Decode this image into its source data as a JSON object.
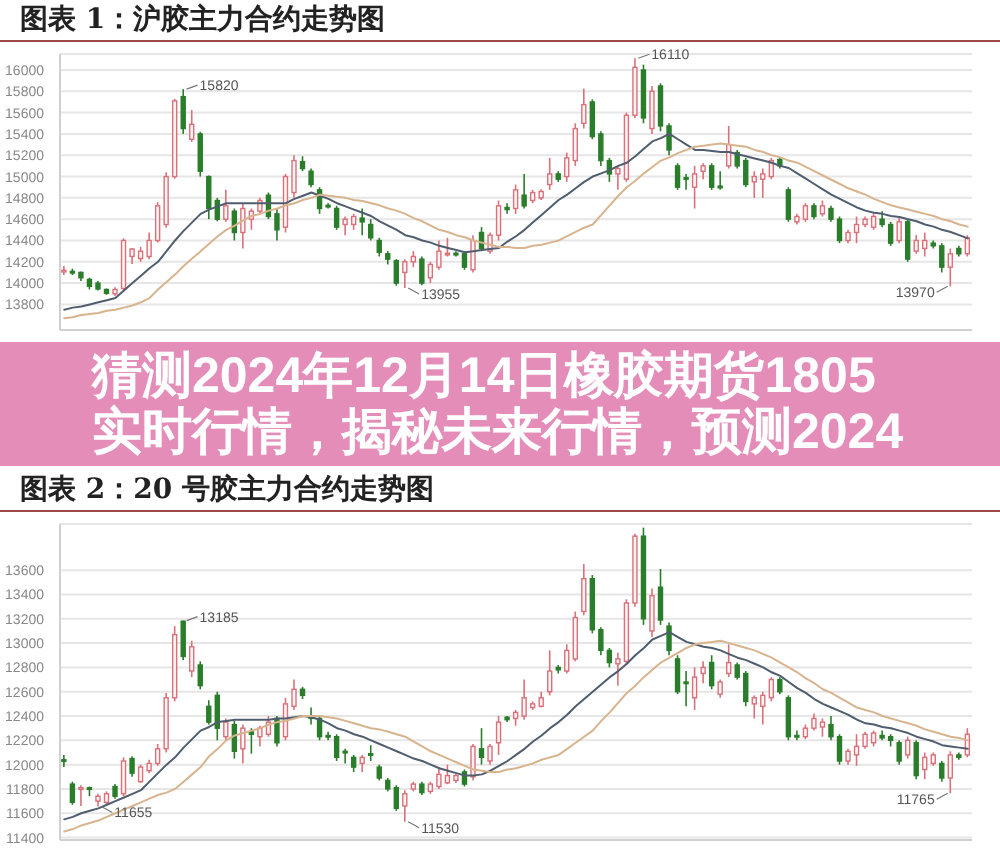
{
  "chart_data": [
    {
      "type": "candlestick",
      "title": "图表 1：沪胶主力合约走势图",
      "categories": [
        null,
        null,
        null,
        null,
        null,
        null,
        null,
        null,
        null,
        null,
        null,
        null,
        null,
        null,
        null,
        null,
        null,
        null,
        null,
        null,
        null,
        null,
        null,
        null,
        null,
        null,
        null,
        null,
        null,
        null,
        null,
        null,
        null,
        null,
        null,
        null,
        null,
        null,
        null,
        null,
        null,
        null,
        null,
        null,
        null,
        null,
        null,
        null,
        null,
        null,
        null,
        null,
        null,
        null,
        null,
        null,
        null,
        null,
        null,
        null,
        null,
        null,
        null,
        null,
        null,
        null,
        null,
        null,
        null,
        null,
        null,
        null,
        null,
        null,
        null,
        null,
        null,
        null,
        null,
        null,
        null,
        null,
        null,
        null,
        null,
        null,
        null,
        null,
        null,
        null,
        null,
        null,
        null,
        null,
        null,
        null,
        null,
        null,
        null,
        null,
        null,
        null,
        null,
        null,
        null,
        null,
        null
      ],
      "ohlc": [
        [
          14110,
          14160,
          14075,
          14120
        ],
        [
          14110,
          14135,
          14075,
          14100
        ],
        [
          14100,
          14110,
          14020,
          14050
        ],
        [
          14035,
          14050,
          13940,
          13970
        ],
        [
          14000,
          14020,
          13930,
          13945
        ],
        [
          13940,
          13950,
          13890,
          13905
        ],
        [
          13900,
          13960,
          13880,
          13940
        ],
        [
          13950,
          14420,
          13930,
          14400
        ],
        [
          14250,
          14330,
          14180,
          14320
        ],
        [
          14230,
          14340,
          14200,
          14300
        ],
        [
          14250,
          14475,
          14225,
          14400
        ],
        [
          14400,
          14760,
          14380,
          14725
        ],
        [
          14550,
          15040,
          14520,
          15000
        ],
        [
          15000,
          15730,
          14980,
          15710
        ],
        [
          15750,
          15820,
          15400,
          15450
        ],
        [
          15350,
          15625,
          15325,
          15490
        ],
        [
          15400,
          15420,
          15000,
          15050
        ],
        [
          15000,
          15010,
          14600,
          14700
        ],
        [
          14775,
          14800,
          14580,
          14600
        ],
        [
          14600,
          14875,
          14575,
          14725
        ],
        [
          14675,
          14700,
          14400,
          14475
        ],
        [
          14475,
          14750,
          14325,
          14700
        ],
        [
          14600,
          14700,
          14500,
          14675
        ],
        [
          14675,
          14800,
          14650,
          14775
        ],
        [
          14825,
          14850,
          14600,
          14625
        ],
        [
          14650,
          14700,
          14400,
          14500
        ],
        [
          14525,
          15025,
          14475,
          15000
        ],
        [
          14850,
          15200,
          14800,
          15150
        ],
        [
          15140,
          15190,
          15050,
          15075
        ],
        [
          15050,
          15075,
          14900,
          14925
        ],
        [
          14875,
          14900,
          14650,
          14700
        ],
        [
          14730,
          14750,
          14700,
          14720
        ],
        [
          14700,
          14725,
          14500,
          14525
        ],
        [
          14550,
          14625,
          14450,
          14600
        ],
        [
          14550,
          14650,
          14500,
          14625
        ],
        [
          14610,
          14700,
          14450,
          14575
        ],
        [
          14550,
          14600,
          14400,
          14425
        ],
        [
          14400,
          14425,
          14250,
          14290
        ],
        [
          14275,
          14300,
          14175,
          14225
        ],
        [
          14210,
          14225,
          13975,
          14000
        ],
        [
          14100,
          14225,
          13955,
          14200
        ],
        [
          14200,
          14300,
          14150,
          14250
        ],
        [
          14225,
          14250,
          13980,
          14000
        ],
        [
          14050,
          14200,
          14000,
          14175
        ],
        [
          14150,
          14400,
          14125,
          14300
        ],
        [
          14270,
          14425,
          14250,
          14280
        ],
        [
          14280,
          14300,
          14250,
          14270
        ],
        [
          14275,
          14300,
          14125,
          14150
        ],
        [
          14125,
          14450,
          14100,
          14400
        ],
        [
          14475,
          14525,
          14300,
          14325
        ],
        [
          14300,
          14475,
          14275,
          14450
        ],
        [
          14450,
          14775,
          14400,
          14725
        ],
        [
          14710,
          14750,
          14650,
          14690
        ],
        [
          14700,
          14925,
          14650,
          14875
        ],
        [
          14825,
          15025,
          14700,
          14725
        ],
        [
          14775,
          14875,
          14750,
          14850
        ],
        [
          14800,
          14880,
          14780,
          14860
        ],
        [
          14925,
          15175,
          14875,
          15025
        ],
        [
          15025,
          15050,
          14950,
          14975
        ],
        [
          15000,
          15225,
          14950,
          15175
        ],
        [
          15150,
          15500,
          15100,
          15450
        ],
        [
          15500,
          15825,
          15450,
          15675
        ],
        [
          15700,
          15725,
          15350,
          15375
        ],
        [
          15400,
          15425,
          15100,
          15150
        ],
        [
          15150,
          15175,
          14950,
          15025
        ],
        [
          15025,
          15100,
          14875,
          15075
        ],
        [
          14975,
          15600,
          14950,
          15575
        ],
        [
          15575,
          16110,
          15550,
          16025
        ],
        [
          16000,
          16050,
          15500,
          15550
        ],
        [
          15450,
          15850,
          15400,
          15800
        ],
        [
          15850,
          15875,
          15425,
          15475
        ],
        [
          15475,
          15500,
          15200,
          15250
        ],
        [
          15100,
          15125,
          14875,
          14900
        ],
        [
          14990,
          15025,
          14875,
          14975
        ],
        [
          14900,
          15100,
          14700,
          15025
        ],
        [
          15050,
          15125,
          14975,
          15100
        ],
        [
          15100,
          15125,
          14875,
          14900
        ],
        [
          14910,
          15050,
          14875,
          14900
        ],
        [
          15100,
          15475,
          15075,
          15300
        ],
        [
          15225,
          15250,
          15075,
          15100
        ],
        [
          15150,
          15175,
          14900,
          14925
        ],
        [
          14950,
          15050,
          14800,
          15000
        ],
        [
          14975,
          15075,
          14800,
          15025
        ],
        [
          15000,
          15175,
          14975,
          15150
        ],
        [
          15160,
          15175,
          15075,
          15100
        ],
        [
          14875,
          14900,
          14575,
          14600
        ],
        [
          14575,
          14650,
          14550,
          14625
        ],
        [
          14600,
          14750,
          14575,
          14725
        ],
        [
          14725,
          14750,
          14600,
          14625
        ],
        [
          14650,
          14775,
          14625,
          14725
        ],
        [
          14700,
          14725,
          14575,
          14600
        ],
        [
          14600,
          14625,
          14375,
          14400
        ],
        [
          14400,
          14500,
          14375,
          14475
        ],
        [
          14475,
          14625,
          14375,
          14550
        ],
        [
          14550,
          14625,
          14525,
          14600
        ],
        [
          14525,
          14650,
          14500,
          14625
        ],
        [
          14600,
          14675,
          14525,
          14550
        ],
        [
          14550,
          14575,
          14350,
          14375
        ],
        [
          14400,
          14625,
          14375,
          14575
        ],
        [
          14575,
          14600,
          14200,
          14225
        ],
        [
          14300,
          14450,
          14275,
          14400
        ],
        [
          14325,
          14475,
          14250,
          14400
        ],
        [
          14375,
          14400,
          14325,
          14350
        ],
        [
          14350,
          14375,
          14100,
          14150
        ],
        [
          14150,
          14325,
          13970,
          14275
        ],
        [
          14325,
          14350,
          14250,
          14275
        ],
        [
          14275,
          14450,
          14250,
          14425
        ]
      ],
      "colors": [
        "#d9707a",
        "#2a7d2a",
        "#2a7d2a",
        "#2a7d2a",
        "#2a7d2a",
        "#2a7d2a",
        "#d9707a",
        "#d9707a",
        "#d9707a",
        "#d9707a",
        "#d9707a",
        "#d9707a",
        "#d9707a",
        "#d9707a",
        "#2a7d2a",
        "#d9707a",
        "#2a7d2a",
        "#2a7d2a",
        "#2a7d2a",
        "#d9707a",
        "#2a7d2a",
        "#d9707a",
        "#d9707a",
        "#d9707a",
        "#2a7d2a",
        "#2a7d2a",
        "#d9707a",
        "#d9707a",
        "#2a7d2a",
        "#2a7d2a",
        "#2a7d2a",
        "#2a7d2a",
        "#2a7d2a",
        "#d9707a",
        "#d9707a",
        "#2a7d2a",
        "#2a7d2a",
        "#2a7d2a",
        "#2a7d2a",
        "#2a7d2a",
        "#d9707a",
        "#d9707a",
        "#2a7d2a",
        "#d9707a",
        "#d9707a",
        "#d9707a",
        "#2a7d2a",
        "#2a7d2a",
        "#d9707a",
        "#2a7d2a",
        "#d9707a",
        "#d9707a",
        "#2a7d2a",
        "#d9707a",
        "#2a7d2a",
        "#d9707a",
        "#d9707a",
        "#d9707a",
        "#2a7d2a",
        "#d9707a",
        "#d9707a",
        "#d9707a",
        "#2a7d2a",
        "#2a7d2a",
        "#2a7d2a",
        "#d9707a",
        "#d9707a",
        "#d9707a",
        "#2a7d2a",
        "#d9707a",
        "#2a7d2a",
        "#2a7d2a",
        "#2a7d2a",
        "#2a7d2a",
        "#d9707a",
        "#d9707a",
        "#2a7d2a",
        "#2a7d2a",
        "#d9707a",
        "#2a7d2a",
        "#2a7d2a",
        "#d9707a",
        "#d9707a",
        "#d9707a",
        "#2a7d2a",
        "#2a7d2a",
        "#d9707a",
        "#d9707a",
        "#2a7d2a",
        "#d9707a",
        "#2a7d2a",
        "#2a7d2a",
        "#d9707a",
        "#d9707a",
        "#d9707a",
        "#d9707a",
        "#2a7d2a",
        "#2a7d2a",
        "#d9707a",
        "#2a7d2a",
        "#d9707a",
        "#d9707a",
        "#2a7d2a",
        "#2a7d2a",
        "#d9707a",
        "#2a7d2a",
        "#d9707a"
      ],
      "series": [
        {
          "type": "line",
          "color": "#4f5d6e",
          "values": [
            13750,
            13770,
            13780,
            13800,
            13820,
            13840,
            13860,
            13930,
            14000,
            14070,
            14140,
            14200,
            14300,
            14400,
            14490,
            14570,
            14650,
            14690,
            14720,
            14750,
            14750,
            14750,
            14750,
            14750,
            14750,
            14750,
            14750,
            14790,
            14820,
            14850,
            14820,
            14790,
            14750,
            14720,
            14690,
            14660,
            14630,
            14580,
            14540,
            14500,
            14450,
            14430,
            14400,
            14380,
            14350,
            14330,
            14310,
            14290,
            14300,
            14310,
            14320,
            14330,
            14390,
            14440,
            14500,
            14570,
            14640,
            14710,
            14780,
            14830,
            14890,
            14950,
            15000,
            15030,
            15060,
            15100,
            15130,
            15190,
            15260,
            15330,
            15360,
            15400,
            15350,
            15300,
            15250,
            15250,
            15240,
            15230,
            15230,
            15210,
            15190,
            15170,
            15150,
            15130,
            15100,
            15080,
            15030,
            14980,
            14930,
            14880,
            14830,
            14790,
            14750,
            14710,
            14680,
            14660,
            14650,
            14630,
            14620,
            14600,
            14580,
            14550,
            14530,
            14500,
            14480,
            14450,
            14420
          ]
        },
        {
          "type": "line",
          "color": "#d8b48e",
          "values": [
            13670,
            13680,
            13700,
            13710,
            13720,
            13740,
            13750,
            13770,
            13790,
            13820,
            13860,
            13940,
            14010,
            14080,
            14160,
            14230,
            14300,
            14370,
            14440,
            14500,
            14540,
            14590,
            14630,
            14650,
            14680,
            14700,
            14730,
            14750,
            14780,
            14800,
            14830,
            14820,
            14810,
            14800,
            14780,
            14770,
            14750,
            14730,
            14700,
            14680,
            14650,
            14610,
            14580,
            14540,
            14500,
            14480,
            14450,
            14430,
            14400,
            14380,
            14360,
            14340,
            14340,
            14330,
            14330,
            14350,
            14360,
            14380,
            14400,
            14440,
            14480,
            14520,
            14550,
            14640,
            14730,
            14820,
            14900,
            14960,
            15030,
            15090,
            15150,
            15180,
            15220,
            15250,
            15280,
            15290,
            15300,
            15310,
            15300,
            15290,
            15280,
            15250,
            15230,
            15200,
            15180,
            15150,
            15130,
            15090,
            15050,
            15010,
            14970,
            14930,
            14890,
            14860,
            14830,
            14790,
            14760,
            14730,
            14710,
            14690,
            14670,
            14650,
            14630,
            14600,
            14580,
            14550,
            14530
          ]
        }
      ],
      "ylim": [
        13560,
        16150
      ],
      "yticks": [
        13800,
        14000,
        14200,
        14400,
        14600,
        14800,
        15000,
        15200,
        15400,
        15600,
        15800,
        16000
      ],
      "grid": "y",
      "tick_labels": "y",
      "marker": "none",
      "annotations": [
        "15820",
        "16110",
        "13955",
        "13970"
      ]
    },
    {
      "type": "other",
      "title": "猜测2024年12月14日橡胶期货1805实时行情，揭秘未来行情，预测2024"
    },
    {
      "type": "candlestick",
      "title": "图表 2：20 号胶主力合约走势图",
      "categories": [
        null,
        null,
        null,
        null,
        null,
        null,
        null,
        null,
        null,
        null,
        null,
        null,
        null,
        null,
        null,
        null,
        null,
        null,
        null,
        null,
        null,
        null,
        null,
        null,
        null,
        null,
        null,
        null,
        null,
        null,
        null,
        null,
        null,
        null,
        null,
        null,
        null,
        null,
        null,
        null,
        null,
        null,
        null,
        null,
        null,
        null,
        null,
        null,
        null,
        null,
        null,
        null,
        null,
        null,
        null,
        null,
        null,
        null,
        null,
        null,
        null,
        null,
        null,
        null,
        null,
        null,
        null,
        null,
        null,
        null,
        null,
        null,
        null,
        null,
        null,
        null,
        null,
        null,
        null,
        null,
        null,
        null,
        null,
        null,
        null,
        null,
        null,
        null,
        null,
        null,
        null,
        null,
        null,
        null,
        null,
        null,
        null,
        null,
        null,
        null,
        null,
        null,
        null,
        null,
        null,
        null,
        null
      ],
      "ohlc": [
        [
          12040,
          12080,
          11980,
          12030
        ],
        [
          11840,
          11860,
          11670,
          11690
        ],
        [
          11800,
          11830,
          11660,
          11810
        ],
        [
          11810,
          11820,
          11740,
          11800
        ],
        [
          11700,
          11760,
          11655,
          11740
        ],
        [
          11690,
          11780,
          11670,
          11760
        ],
        [
          11820,
          11840,
          11720,
          11740
        ],
        [
          11760,
          12060,
          11740,
          12030
        ],
        [
          12050,
          12070,
          11900,
          11930
        ],
        [
          11860,
          12000,
          11850,
          11980
        ],
        [
          11950,
          12040,
          11930,
          12010
        ],
        [
          12010,
          12170,
          11990,
          12130
        ],
        [
          12130,
          12590,
          12100,
          12550
        ],
        [
          12550,
          13140,
          12520,
          13070
        ],
        [
          13180,
          13185,
          12860,
          12890
        ],
        [
          12770,
          13020,
          12720,
          12970
        ],
        [
          12820,
          12850,
          12620,
          12650
        ],
        [
          12480,
          12530,
          12330,
          12350
        ],
        [
          12570,
          12600,
          12200,
          12300
        ],
        [
          12230,
          12380,
          12200,
          12350
        ],
        [
          12330,
          12360,
          12050,
          12110
        ],
        [
          12130,
          12330,
          12010,
          12300
        ],
        [
          12270,
          12300,
          12090,
          12250
        ],
        [
          12230,
          12320,
          12150,
          12300
        ],
        [
          12250,
          12400,
          12230,
          12350
        ],
        [
          12380,
          12400,
          12150,
          12180
        ],
        [
          12230,
          12550,
          12200,
          12500
        ],
        [
          12480,
          12700,
          12450,
          12620
        ],
        [
          12620,
          12640,
          12540,
          12570
        ],
        [
          12400,
          12470,
          12330,
          12380
        ],
        [
          12380,
          12400,
          12200,
          12230
        ],
        [
          12240,
          12270,
          12200,
          12230
        ],
        [
          12230,
          12250,
          12030,
          12060
        ],
        [
          12110,
          12130,
          12010,
          12100
        ],
        [
          12060,
          12080,
          11940,
          11980
        ],
        [
          12010,
          12080,
          11940,
          12060
        ],
        [
          12090,
          12160,
          12030,
          12080
        ],
        [
          11980,
          12000,
          11870,
          11890
        ],
        [
          11870,
          11890,
          11780,
          11800
        ],
        [
          11810,
          11830,
          11620,
          11640
        ],
        [
          11660,
          11790,
          11530,
          11760
        ],
        [
          11800,
          11860,
          11780,
          11840
        ],
        [
          11840,
          11860,
          11750,
          11770
        ],
        [
          11780,
          11860,
          11760,
          11840
        ],
        [
          11820,
          11980,
          11800,
          11920
        ],
        [
          11850,
          12000,
          11840,
          11910
        ],
        [
          11870,
          11930,
          11850,
          11910
        ],
        [
          11940,
          11960,
          11820,
          11840
        ],
        [
          11900,
          12170,
          11870,
          12150
        ],
        [
          12130,
          12300,
          12000,
          12060
        ],
        [
          12030,
          12170,
          12000,
          12150
        ],
        [
          12180,
          12400,
          12080,
          12350
        ],
        [
          12390,
          12400,
          12350,
          12370
        ],
        [
          12380,
          12450,
          12320,
          12430
        ],
        [
          12400,
          12700,
          12370,
          12550
        ],
        [
          12470,
          12520,
          12450,
          12500
        ],
        [
          12480,
          12600,
          12470,
          12550
        ],
        [
          12600,
          12940,
          12570,
          12770
        ],
        [
          12800,
          12820,
          12750,
          12780
        ],
        [
          12770,
          12990,
          12750,
          12940
        ],
        [
          12870,
          13260,
          12850,
          13210
        ],
        [
          13260,
          13650,
          13230,
          13530
        ],
        [
          13530,
          13560,
          13080,
          13110
        ],
        [
          13110,
          13130,
          12900,
          12940
        ],
        [
          12940,
          12960,
          12800,
          12840
        ],
        [
          12830,
          12920,
          12650,
          12870
        ],
        [
          12850,
          13360,
          12820,
          13330
        ],
        [
          13330,
          13900,
          13300,
          13880
        ],
        [
          13880,
          13950,
          13150,
          13200
        ],
        [
          13100,
          13450,
          13050,
          13390
        ],
        [
          13460,
          13610,
          13150,
          13190
        ],
        [
          13140,
          13170,
          12900,
          12940
        ],
        [
          12870,
          12900,
          12580,
          12600
        ],
        [
          12680,
          12770,
          12480,
          12670
        ],
        [
          12550,
          12800,
          12450,
          12720
        ],
        [
          12750,
          12850,
          12670,
          12800
        ],
        [
          12840,
          12900,
          12620,
          12650
        ],
        [
          12580,
          12700,
          12550,
          12680
        ],
        [
          12750,
          12990,
          12720,
          12840
        ],
        [
          12820,
          12840,
          12700,
          12720
        ],
        [
          12750,
          12770,
          12480,
          12520
        ],
        [
          12500,
          12570,
          12380,
          12550
        ],
        [
          12480,
          12600,
          12330,
          12570
        ],
        [
          12550,
          12720,
          12520,
          12700
        ],
        [
          12700,
          12720,
          12580,
          12600
        ],
        [
          12550,
          12570,
          12200,
          12230
        ],
        [
          12240,
          12280,
          12200,
          12230
        ],
        [
          12230,
          12330,
          12210,
          12300
        ],
        [
          12300,
          12420,
          12280,
          12380
        ],
        [
          12310,
          12380,
          12230,
          12350
        ],
        [
          12330,
          12400,
          12200,
          12230
        ],
        [
          12230,
          12250,
          12000,
          12030
        ],
        [
          12030,
          12130,
          12000,
          12110
        ],
        [
          12080,
          12250,
          11990,
          12150
        ],
        [
          12150,
          12270,
          12130,
          12250
        ],
        [
          12180,
          12280,
          12150,
          12260
        ],
        [
          12240,
          12280,
          12200,
          12220
        ],
        [
          12230,
          12250,
          12150,
          12200
        ],
        [
          12180,
          12200,
          12000,
          12030
        ],
        [
          12080,
          12230,
          12050,
          12200
        ],
        [
          12180,
          12200,
          11880,
          11910
        ],
        [
          11960,
          12100,
          11880,
          12060
        ],
        [
          12010,
          12100,
          11990,
          12080
        ],
        [
          12010,
          12030,
          11860,
          11890
        ],
        [
          11890,
          12110,
          11765,
          12080
        ],
        [
          12080,
          12100,
          12040,
          12060
        ],
        [
          12080,
          12300,
          12060,
          12250
        ]
      ],
      "colors": [
        "#2a7d2a",
        "#2a7d2a",
        "#d9707a",
        "#2a7d2a",
        "#d9707a",
        "#d9707a",
        "#2a7d2a",
        "#d9707a",
        "#2a7d2a",
        "#d9707a",
        "#d9707a",
        "#d9707a",
        "#d9707a",
        "#d9707a",
        "#2a7d2a",
        "#d9707a",
        "#2a7d2a",
        "#2a7d2a",
        "#2a7d2a",
        "#d9707a",
        "#2a7d2a",
        "#d9707a",
        "#2a7d2a",
        "#d9707a",
        "#d9707a",
        "#2a7d2a",
        "#d9707a",
        "#d9707a",
        "#2a7d2a",
        "#2a7d2a",
        "#2a7d2a",
        "#2a7d2a",
        "#2a7d2a",
        "#2a7d2a",
        "#2a7d2a",
        "#d9707a",
        "#2a7d2a",
        "#2a7d2a",
        "#2a7d2a",
        "#2a7d2a",
        "#d9707a",
        "#d9707a",
        "#2a7d2a",
        "#d9707a",
        "#d9707a",
        "#d9707a",
        "#d9707a",
        "#2a7d2a",
        "#d9707a",
        "#2a7d2a",
        "#d9707a",
        "#d9707a",
        "#2a7d2a",
        "#d9707a",
        "#d9707a",
        "#d9707a",
        "#d9707a",
        "#d9707a",
        "#2a7d2a",
        "#d9707a",
        "#d9707a",
        "#d9707a",
        "#2a7d2a",
        "#2a7d2a",
        "#2a7d2a",
        "#d9707a",
        "#d9707a",
        "#d9707a",
        "#2a7d2a",
        "#d9707a",
        "#2a7d2a",
        "#2a7d2a",
        "#2a7d2a",
        "#2a7d2a",
        "#d9707a",
        "#d9707a",
        "#2a7d2a",
        "#d9707a",
        "#d9707a",
        "#2a7d2a",
        "#2a7d2a",
        "#d9707a",
        "#d9707a",
        "#d9707a",
        "#2a7d2a",
        "#2a7d2a",
        "#2a7d2a",
        "#d9707a",
        "#d9707a",
        "#d9707a",
        "#2a7d2a",
        "#2a7d2a",
        "#d9707a",
        "#d9707a",
        "#d9707a",
        "#d9707a",
        "#2a7d2a",
        "#2a7d2a",
        "#2a7d2a",
        "#d9707a",
        "#2a7d2a",
        "#d9707a",
        "#d9707a",
        "#2a7d2a",
        "#d9707a",
        "#2a7d2a",
        "#d9707a"
      ],
      "series": [
        {
          "type": "line",
          "color": "#4f5d6e",
          "values": [
            11550,
            11570,
            11600,
            11620,
            11640,
            11670,
            11700,
            11730,
            11760,
            11790,
            11860,
            11930,
            12000,
            12060,
            12140,
            12210,
            12280,
            12310,
            12350,
            12360,
            12370,
            12370,
            12370,
            12370,
            12370,
            12380,
            12380,
            12390,
            12400,
            12390,
            12370,
            12340,
            12300,
            12280,
            12250,
            12230,
            12200,
            12170,
            12140,
            12110,
            12080,
            12050,
            12030,
            12000,
            11970,
            11950,
            11930,
            11910,
            11910,
            11920,
            11950,
            11990,
            12030,
            12080,
            12130,
            12190,
            12240,
            12300,
            12350,
            12410,
            12480,
            12540,
            12600,
            12660,
            12720,
            12770,
            12830,
            12900,
            12960,
            13030,
            13060,
            13090,
            13050,
            13010,
            12990,
            12970,
            12960,
            12940,
            12910,
            12880,
            12860,
            12830,
            12800,
            12760,
            12730,
            12680,
            12630,
            12590,
            12540,
            12500,
            12470,
            12440,
            12410,
            12370,
            12340,
            12330,
            12310,
            12300,
            12280,
            12260,
            12230,
            12210,
            12190,
            12160,
            12150,
            12140,
            12130
          ]
        },
        {
          "type": "line",
          "color": "#d8b48e",
          "values": [
            11450,
            11470,
            11500,
            11520,
            11540,
            11570,
            11600,
            11630,
            11660,
            11690,
            11720,
            11750,
            11770,
            11800,
            11860,
            11920,
            11980,
            12070,
            12130,
            12200,
            12240,
            12260,
            12280,
            12300,
            12330,
            12350,
            12360,
            12380,
            12400,
            12400,
            12400,
            12390,
            12380,
            12360,
            12340,
            12320,
            12300,
            12290,
            12270,
            12250,
            12230,
            12190,
            12150,
            12110,
            12080,
            12050,
            12020,
            11990,
            11960,
            11950,
            11940,
            11940,
            11960,
            11970,
            11990,
            12010,
            12040,
            12060,
            12080,
            12130,
            12180,
            12230,
            12280,
            12360,
            12430,
            12510,
            12590,
            12650,
            12720,
            12780,
            12840,
            12880,
            12920,
            12960,
            12990,
            13000,
            13010,
            13020,
            13000,
            12980,
            12960,
            12940,
            12910,
            12880,
            12840,
            12800,
            12760,
            12710,
            12670,
            12620,
            12590,
            12550,
            12510,
            12470,
            12450,
            12430,
            12400,
            12380,
            12360,
            12340,
            12320,
            12290,
            12270,
            12250,
            12230,
            12220,
            12200
          ]
        }
      ],
      "ylim": [
        11380,
        13980
      ],
      "yticks": [
        11400,
        11600,
        11800,
        12000,
        12200,
        12400,
        12600,
        12800,
        13000,
        13200,
        13400,
        13600
      ],
      "grid": "y",
      "tick_labels": "y",
      "marker": "none",
      "annotations": [
        "13185",
        "11655",
        "11530",
        "11765"
      ]
    }
  ]
}
